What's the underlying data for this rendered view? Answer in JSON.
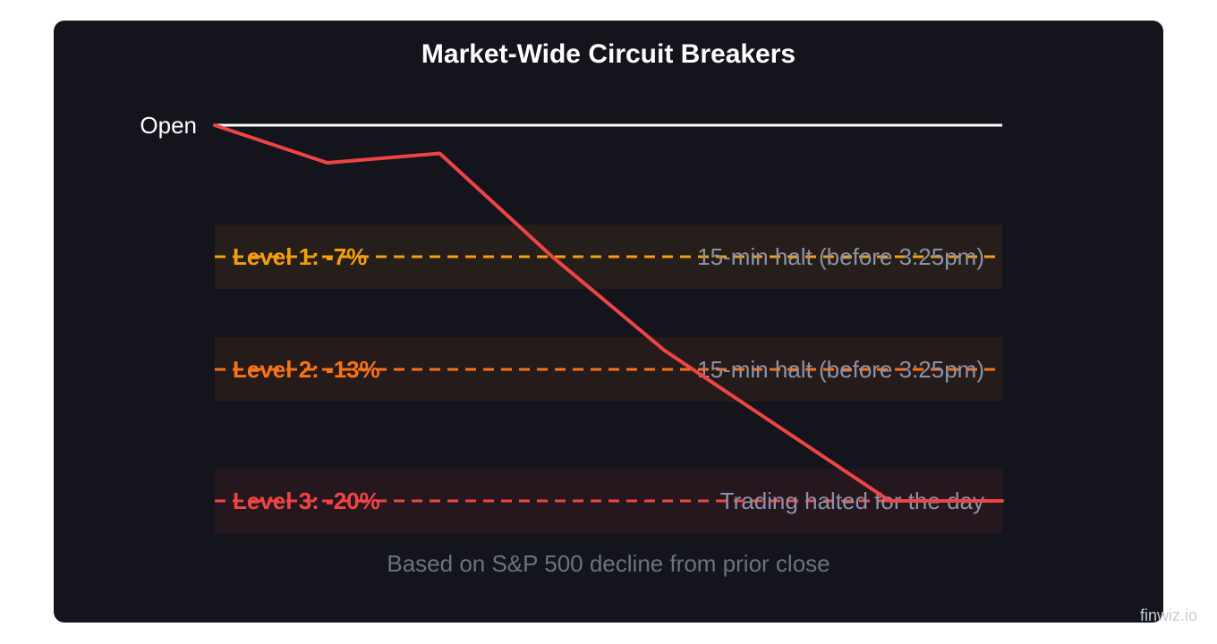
{
  "title": "Market-Wide Circuit Breakers",
  "watermark": "finwiz.io",
  "chart_data": {
    "type": "line",
    "title": "Market-Wide Circuit Breakers",
    "caption": "Based on S&P 500 decline from prior close",
    "xlabel": "",
    "ylabel": "",
    "x": [
      0,
      1,
      2,
      3,
      4,
      5,
      6,
      7
    ],
    "series": [
      {
        "values": [
          0,
          -2,
          -1.5,
          -7,
          -12,
          -16,
          -20,
          -20
        ],
        "color": "#ef4444"
      }
    ],
    "ylim": [
      -20,
      0
    ],
    "open_label": "Open",
    "levels": [
      {
        "label": "Level 1: -7%",
        "value": -7,
        "action": "15-min halt (before 3:25pm)",
        "color": "#f59e0b"
      },
      {
        "label": "Level 2: -13%",
        "value": -13,
        "action": "15-min halt (before 3:25pm)",
        "color": "#f97316"
      },
      {
        "label": "Level 3: -20%",
        "value": -20,
        "action": "Trading halted for the day",
        "color": "#ef4444"
      }
    ],
    "grid": false,
    "legend": "none"
  }
}
